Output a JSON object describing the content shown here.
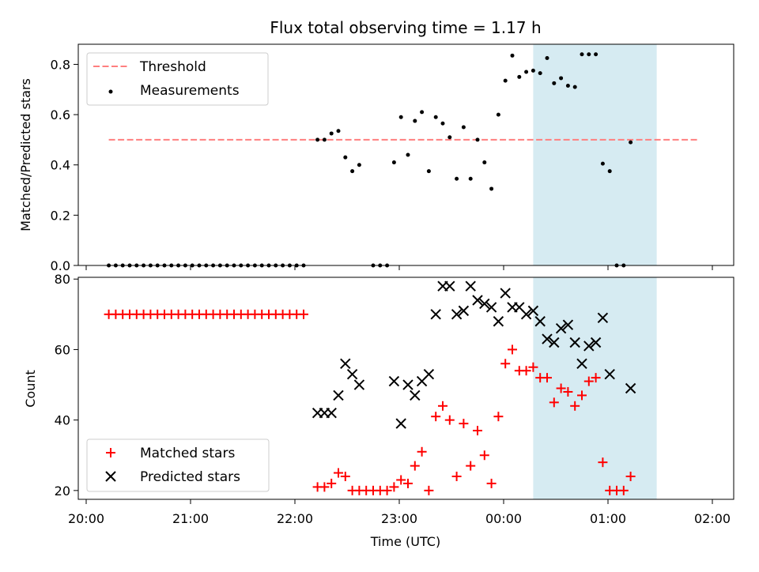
{
  "title": "Flux total observing time = 1.17 h",
  "xlabel": "Time (UTC)",
  "x_ticks": [
    "20:00",
    "21:00",
    "22:00",
    "23:00",
    "00:00",
    "01:00",
    "02:00"
  ],
  "highlight": {
    "start": "00:17",
    "end": "01:28",
    "color": "#add8e6"
  },
  "colors": {
    "measurements": "#000000",
    "threshold": "#ff7f7f",
    "matched": "#ff0000",
    "predicted": "#000000"
  },
  "chart_data": [
    {
      "type": "scatter",
      "ylabel": "Matched/Predicted stars",
      "ylim": [
        0,
        0.88
      ],
      "yticks": [
        "0.0",
        "0.2",
        "0.4",
        "0.6",
        "0.8"
      ],
      "legend_placement": "top-left",
      "threshold": {
        "name": "Threshold",
        "value": 0.5,
        "x_start": "20:13",
        "x_end": "01:52"
      },
      "series": [
        {
          "name": "Measurements",
          "points": [
            [
              "20:13",
              0.0
            ],
            [
              "20:17",
              0.0
            ],
            [
              "20:21",
              0.0
            ],
            [
              "20:25",
              0.0
            ],
            [
              "20:29",
              0.0
            ],
            [
              "20:33",
              0.0
            ],
            [
              "20:37",
              0.0
            ],
            [
              "20:41",
              0.0
            ],
            [
              "20:45",
              0.0
            ],
            [
              "20:49",
              0.0
            ],
            [
              "20:53",
              0.0
            ],
            [
              "20:57",
              0.0
            ],
            [
              "21:01",
              0.0
            ],
            [
              "21:05",
              0.0
            ],
            [
              "21:09",
              0.0
            ],
            [
              "21:13",
              0.0
            ],
            [
              "21:17",
              0.0
            ],
            [
              "21:21",
              0.0
            ],
            [
              "21:25",
              0.0
            ],
            [
              "21:29",
              0.0
            ],
            [
              "21:33",
              0.0
            ],
            [
              "21:37",
              0.0
            ],
            [
              "21:41",
              0.0
            ],
            [
              "21:45",
              0.0
            ],
            [
              "21:49",
              0.0
            ],
            [
              "21:53",
              0.0
            ],
            [
              "21:57",
              0.0
            ],
            [
              "22:01",
              0.0
            ],
            [
              "22:05",
              0.0
            ],
            [
              "22:13",
              0.5
            ],
            [
              "22:17",
              0.5
            ],
            [
              "22:21",
              0.525
            ],
            [
              "22:25",
              0.535
            ],
            [
              "22:29",
              0.43
            ],
            [
              "22:33",
              0.375
            ],
            [
              "22:37",
              0.4
            ],
            [
              "22:45",
              0.0
            ],
            [
              "22:49",
              0.0
            ],
            [
              "22:53",
              0.0
            ],
            [
              "22:57",
              0.41
            ],
            [
              "23:01",
              0.59
            ],
            [
              "23:05",
              0.44
            ],
            [
              "23:09",
              0.575
            ],
            [
              "23:13",
              0.61
            ],
            [
              "23:17",
              0.375
            ],
            [
              "23:21",
              0.59
            ],
            [
              "23:25",
              0.565
            ],
            [
              "23:29",
              0.51
            ],
            [
              "23:33",
              0.345
            ],
            [
              "23:37",
              0.55
            ],
            [
              "23:41",
              0.345
            ],
            [
              "23:45",
              0.5
            ],
            [
              "23:49",
              0.41
            ],
            [
              "23:53",
              0.305
            ],
            [
              "23:57",
              0.6
            ],
            [
              "00:01",
              0.735
            ],
            [
              "00:05",
              0.835
            ],
            [
              "00:09",
              0.75
            ],
            [
              "00:13",
              0.77
            ],
            [
              "00:17",
              0.775
            ],
            [
              "00:21",
              0.765
            ],
            [
              "00:25",
              0.825
            ],
            [
              "00:29",
              0.725
            ],
            [
              "00:33",
              0.745
            ],
            [
              "00:37",
              0.715
            ],
            [
              "00:41",
              0.71
            ],
            [
              "00:45",
              0.84
            ],
            [
              "00:49",
              0.84
            ],
            [
              "00:53",
              0.84
            ],
            [
              "00:57",
              0.405
            ],
            [
              "01:01",
              0.375
            ],
            [
              "01:05",
              0.0
            ],
            [
              "01:09",
              0.0
            ],
            [
              "01:13",
              0.49
            ]
          ]
        }
      ]
    },
    {
      "type": "scatter",
      "ylabel": "Count",
      "ylim": [
        17.5,
        80.5
      ],
      "yticks": [
        "20",
        "40",
        "60",
        "80"
      ],
      "legend_placement": "bottom-left",
      "series": [
        {
          "name": "Matched stars",
          "marker": "+",
          "points": [
            [
              "20:13",
              70
            ],
            [
              "20:17",
              70
            ],
            [
              "20:21",
              70
            ],
            [
              "20:25",
              70
            ],
            [
              "20:29",
              70
            ],
            [
              "20:33",
              70
            ],
            [
              "20:37",
              70
            ],
            [
              "20:41",
              70
            ],
            [
              "20:45",
              70
            ],
            [
              "20:49",
              70
            ],
            [
              "20:53",
              70
            ],
            [
              "20:57",
              70
            ],
            [
              "21:01",
              70
            ],
            [
              "21:05",
              70
            ],
            [
              "21:09",
              70
            ],
            [
              "21:13",
              70
            ],
            [
              "21:17",
              70
            ],
            [
              "21:21",
              70
            ],
            [
              "21:25",
              70
            ],
            [
              "21:29",
              70
            ],
            [
              "21:33",
              70
            ],
            [
              "21:37",
              70
            ],
            [
              "21:41",
              70
            ],
            [
              "21:45",
              70
            ],
            [
              "21:49",
              70
            ],
            [
              "21:53",
              70
            ],
            [
              "21:57",
              70
            ],
            [
              "22:01",
              70
            ],
            [
              "22:05",
              70
            ],
            [
              "22:13",
              21
            ],
            [
              "22:17",
              21
            ],
            [
              "22:21",
              22
            ],
            [
              "22:25",
              25
            ],
            [
              "22:29",
              24
            ],
            [
              "22:33",
              20
            ],
            [
              "22:37",
              20
            ],
            [
              "22:41",
              20
            ],
            [
              "22:45",
              20
            ],
            [
              "22:49",
              20
            ],
            [
              "22:53",
              20
            ],
            [
              "22:57",
              21
            ],
            [
              "23:01",
              23
            ],
            [
              "23:05",
              22
            ],
            [
              "23:09",
              27
            ],
            [
              "23:13",
              31
            ],
            [
              "23:17",
              20
            ],
            [
              "23:21",
              41
            ],
            [
              "23:25",
              44
            ],
            [
              "23:29",
              40
            ],
            [
              "23:33",
              24
            ],
            [
              "23:37",
              39
            ],
            [
              "23:41",
              27
            ],
            [
              "23:45",
              37
            ],
            [
              "23:49",
              30
            ],
            [
              "23:53",
              22
            ],
            [
              "23:57",
              41
            ],
            [
              "00:01",
              56
            ],
            [
              "00:05",
              60
            ],
            [
              "00:09",
              54
            ],
            [
              "00:13",
              54
            ],
            [
              "00:17",
              55
            ],
            [
              "00:21",
              52
            ],
            [
              "00:25",
              52
            ],
            [
              "00:29",
              45
            ],
            [
              "00:33",
              49
            ],
            [
              "00:37",
              48
            ],
            [
              "00:41",
              44
            ],
            [
              "00:45",
              47
            ],
            [
              "00:49",
              51
            ],
            [
              "00:53",
              52
            ],
            [
              "00:57",
              28
            ],
            [
              "01:01",
              20
            ],
            [
              "01:05",
              20
            ],
            [
              "01:09",
              20
            ],
            [
              "01:13",
              24
            ]
          ]
        },
        {
          "name": "Predicted stars",
          "marker": "x",
          "points": [
            [
              "22:13",
              42
            ],
            [
              "22:17",
              42
            ],
            [
              "22:21",
              42
            ],
            [
              "22:25",
              47
            ],
            [
              "22:29",
              56
            ],
            [
              "22:33",
              53
            ],
            [
              "22:37",
              50
            ],
            [
              "22:57",
              51
            ],
            [
              "23:01",
              39
            ],
            [
              "23:05",
              50
            ],
            [
              "23:09",
              47
            ],
            [
              "23:13",
              51
            ],
            [
              "23:17",
              53
            ],
            [
              "23:21",
              70
            ],
            [
              "23:25",
              78
            ],
            [
              "23:29",
              78
            ],
            [
              "23:33",
              70
            ],
            [
              "23:37",
              71
            ],
            [
              "23:41",
              78
            ],
            [
              "23:45",
              74
            ],
            [
              "23:49",
              73
            ],
            [
              "23:53",
              72
            ],
            [
              "23:57",
              68
            ],
            [
              "00:01",
              76
            ],
            [
              "00:05",
              72
            ],
            [
              "00:09",
              72
            ],
            [
              "00:13",
              70
            ],
            [
              "00:17",
              71
            ],
            [
              "00:21",
              68
            ],
            [
              "00:25",
              63
            ],
            [
              "00:29",
              62
            ],
            [
              "00:33",
              66
            ],
            [
              "00:37",
              67
            ],
            [
              "00:41",
              62
            ],
            [
              "00:45",
              56
            ],
            [
              "00:49",
              61
            ],
            [
              "00:53",
              62
            ],
            [
              "00:57",
              69
            ],
            [
              "01:01",
              53
            ],
            [
              "01:13",
              49
            ]
          ]
        }
      ]
    }
  ]
}
